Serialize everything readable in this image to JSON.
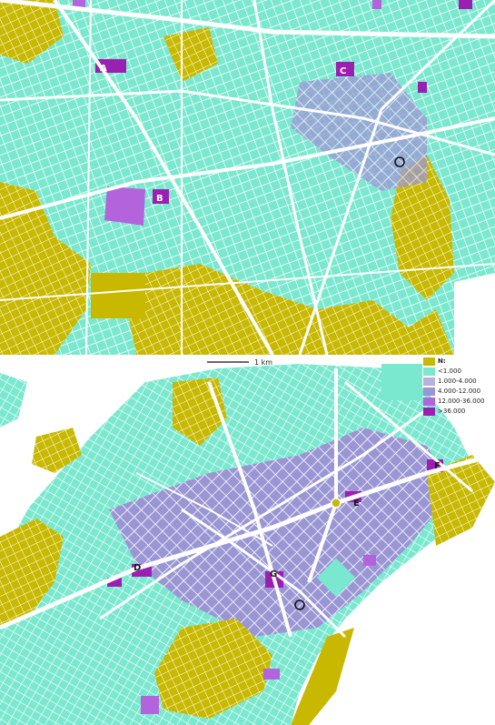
{
  "scale_bar": {
    "label": "1 km"
  },
  "legend": {
    "title": "N:",
    "items": [
      {
        "label": "<1.000",
        "color": "#7ae8cf"
      },
      {
        "label": "1.000-4.000",
        "color": "#b9b0de"
      },
      {
        "label": "4.000-12.000",
        "color": "#9a96d4"
      },
      {
        "label": "12.000-36.000",
        "color": "#b364dc"
      },
      {
        "label": ">36.000",
        "color": "#9b1fb0"
      }
    ],
    "title_color": "#c8b900"
  },
  "markers": {
    "A": "A",
    "B": "B",
    "C": "C",
    "D": "D",
    "E": "E",
    "F": "F",
    "G": "G"
  },
  "colors": {
    "yellow": "#c8b900",
    "cyan": "#7ae8cf",
    "lavender": "#9a96d4",
    "purple": "#b364dc",
    "magenta": "#9b1fb0",
    "road": "#ffffff"
  }
}
